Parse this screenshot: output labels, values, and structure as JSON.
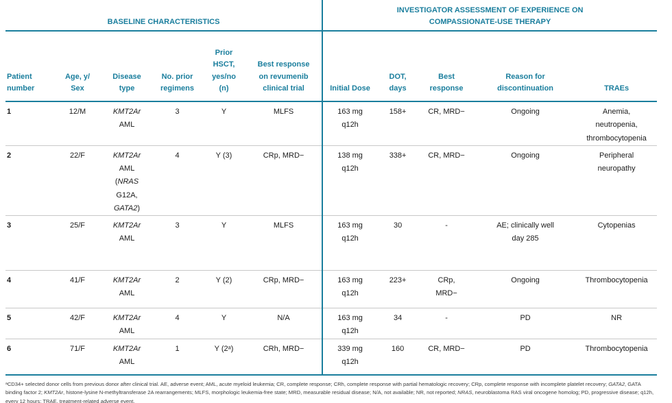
{
  "colors": {
    "accent": "#1a7e9d",
    "row_divider": "#c8c8c8"
  },
  "sections": {
    "left": "BASELINE CHARACTERISTICS",
    "right": "INVESTIGATOR ASSESSMENT OF EXPERIENCE ON\nCOMPASSIONATE-USE THERAPY"
  },
  "columns": {
    "patient": "Patient\nnumber",
    "age_sex": "Age, y/\nSex",
    "disease": "Disease\ntype",
    "regimens": "No. prior\nregimens",
    "hsct": "Prior\nHSCT,\nyes/no\n(n)",
    "best_trial": "Best response\non revumenib\nclinical trial",
    "dose": "Initial Dose",
    "dot": "DOT,\ndays",
    "best": "Best\nresponse",
    "reason": "Reason for\ndiscontinuation",
    "traes": "TRAEs"
  },
  "rows": [
    {
      "patient": "1",
      "age_sex": "12/M",
      "disease": [
        [
          {
            "t": "KMT2Ar",
            "i": true
          }
        ],
        [
          {
            "t": "AML"
          }
        ]
      ],
      "regimens": "3",
      "hsct": "Y",
      "best_trial": "MLFS",
      "dose": "163 mg\nq12h",
      "dot": "158+",
      "best": "CR, MRD−",
      "reason": "Ongoing",
      "traes": "Anemia,\nneutropenia,\nthrombocytopenia"
    },
    {
      "patient": "2",
      "age_sex": "22/F",
      "disease": [
        [
          {
            "t": "KMT2Ar",
            "i": true
          }
        ],
        [
          {
            "t": "AML"
          }
        ],
        [
          {
            "t": "("
          },
          {
            "t": "NRAS",
            "i": true
          }
        ],
        [
          {
            "t": "G12A,"
          }
        ],
        [
          {
            "t": "GATA2",
            "i": true
          },
          {
            "t": ")"
          }
        ]
      ],
      "regimens": "4",
      "hsct": "Y (3)",
      "best_trial": "CRp, MRD−",
      "dose": "138 mg\nq12h",
      "dot": "338+",
      "best": "CR, MRD−",
      "reason": "Ongoing",
      "traes": "Peripheral\nneuropathy"
    },
    {
      "patient": "3",
      "age_sex": "25/F",
      "disease": [
        [
          {
            "t": "KMT2Ar",
            "i": true
          }
        ],
        [
          {
            "t": "AML"
          }
        ]
      ],
      "regimens": "3",
      "hsct": "Y",
      "best_trial": "MLFS",
      "dose": "163 mg\nq12h",
      "dot": "30",
      "best": "-",
      "reason": "AE; clinically well\nday 285",
      "traes": "Cytopenias"
    },
    {
      "patient": "4",
      "age_sex": "41/F",
      "disease": [
        [
          {
            "t": "KMT2Ar",
            "i": true
          }
        ],
        [
          {
            "t": "AML"
          }
        ]
      ],
      "regimens": "2",
      "hsct": "Y (2)",
      "best_trial": "CRp, MRD−",
      "dose": "163 mg\nq12h",
      "dot": "223+",
      "best": "CRp,\nMRD−",
      "reason": "Ongoing",
      "traes": "Thrombocytopenia"
    },
    {
      "patient": "5",
      "age_sex": "42/F",
      "disease": [
        [
          {
            "t": "KMT2Ar",
            "i": true
          }
        ],
        [
          {
            "t": "AML"
          }
        ]
      ],
      "regimens": "4",
      "hsct": "Y",
      "best_trial": "N/A",
      "dose": "163 mg\nq12h",
      "dot": "34",
      "best": "-",
      "reason": "PD",
      "traes": "NR"
    },
    {
      "patient": "6",
      "age_sex": "71/F",
      "disease": [
        [
          {
            "t": "KMT2Ar",
            "i": true
          }
        ],
        [
          {
            "t": "AML"
          }
        ]
      ],
      "regimens": "1",
      "hsct": "Y (2ᵃ)",
      "best_trial": "CRh, MRD−",
      "dose": "339 mg\nq12h",
      "dot": "160",
      "best": "CR, MRD−",
      "reason": "PD",
      "traes": "Thrombocytopenia"
    }
  ],
  "footnote": [
    [
      {
        "t": "ᵃCD34+ selected donor cells from previous donor after clinical trial. AE, adverse event; AML, acute myeloid leukemia; CR, complete response; CRh, complete response with partial hematologic recovery; CRp, complete response with incomplete platelet recovery; "
      },
      {
        "t": "GATA2",
        "i": true
      },
      {
        "t": ", GATA binding factor 2; "
      },
      {
        "t": "KMT2Ar",
        "i": true
      },
      {
        "t": ", histone-lysine N-methyltransferase 2A rearrangements; MLFS, morphologic leukemia-free state; MRD, measurable residual disease; N/A, not available; NR, not reported; "
      },
      {
        "t": "NRAS",
        "i": true
      },
      {
        "t": ", neuroblastoma RAS viral oncogene homolog; PD, progressive disease; q12h, every 12 hours; TRAE, treatment-related adverse event."
      }
    ]
  ]
}
